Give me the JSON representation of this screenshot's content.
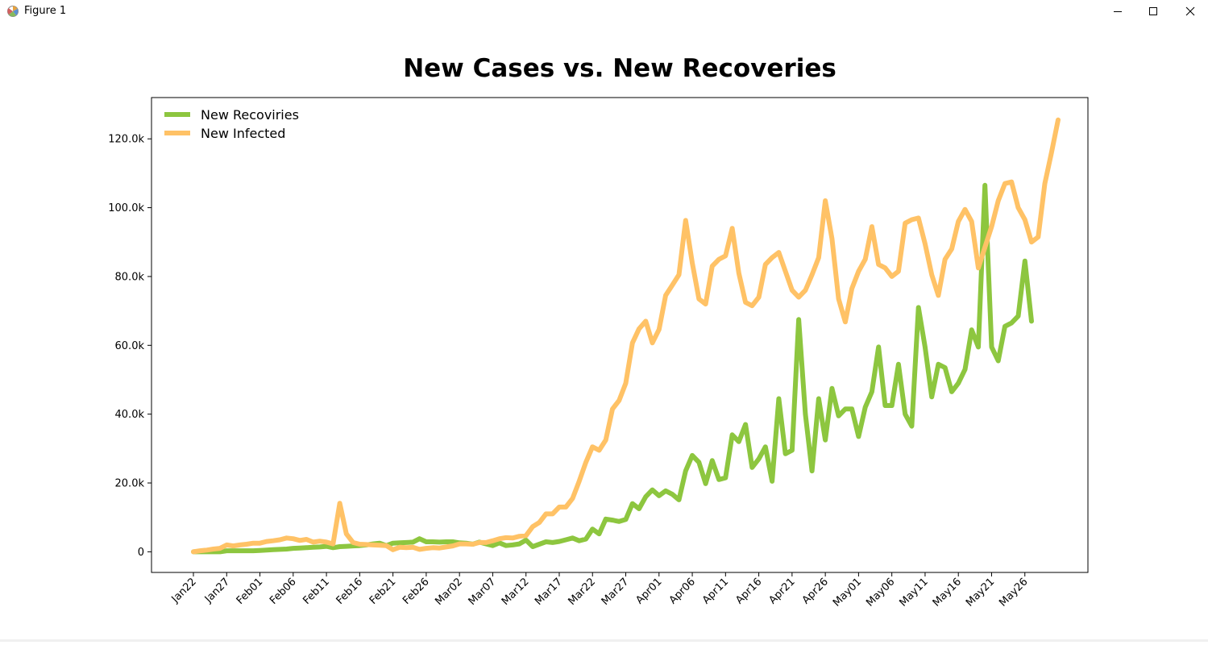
{
  "window": {
    "title": "Figure 1",
    "minimize_icon": "minimize-icon",
    "maximize_icon": "maximize-icon",
    "close_icon": "close-icon"
  },
  "chart_data": {
    "type": "line",
    "title": "New Cases vs. New Recoveries",
    "xlabel": "",
    "ylabel": "",
    "ylim": [
      -6000,
      132000
    ],
    "yticks": [
      0,
      20000,
      40000,
      60000,
      80000,
      100000,
      120000
    ],
    "ytick_labels": [
      "0",
      "20.0k",
      "40.0k",
      "60.0k",
      "80.0k",
      "100.0k",
      "120.0k"
    ],
    "x_start": "Jan22",
    "xticks": [
      "Jan22",
      "Jan27",
      "Feb01",
      "Feb06",
      "Feb11",
      "Feb16",
      "Feb21",
      "Feb26",
      "Mar02",
      "Mar07",
      "Mar12",
      "Mar17",
      "Mar22",
      "Mar27",
      "Apr01",
      "Apr06",
      "Apr11",
      "Apr16",
      "Apr21",
      "Apr26",
      "May01",
      "May06",
      "May11",
      "May16",
      "May21",
      "May26"
    ],
    "grid": false,
    "legend": "top-left",
    "series": [
      {
        "name": "New Recoviries",
        "color": "#8dc63f",
        "values": [
          0,
          0,
          0,
          0,
          0,
          300,
          300,
          300,
          300,
          300,
          400,
          500,
          600,
          700,
          800,
          1000,
          1100,
          1200,
          1300,
          1400,
          1600,
          1200,
          1500,
          1600,
          1700,
          1800,
          2000,
          2300,
          2500,
          1800,
          2500,
          2600,
          2700,
          2800,
          3800,
          2900,
          2900,
          2800,
          2900,
          2900,
          2600,
          2500,
          2200,
          2800,
          2300,
          1800,
          2600,
          1800,
          2000,
          2300,
          3400,
          1500,
          2200,
          2900,
          2700,
          3000,
          3500,
          4000,
          3200,
          3700,
          6600,
          5200,
          9500,
          9200,
          8800,
          9400,
          14000,
          12500,
          16000,
          18000,
          16300,
          17700,
          16700,
          15100,
          23500,
          28000,
          26000,
          19800,
          26500,
          21000,
          21500,
          34000,
          32000,
          37000,
          24500,
          27000,
          30500,
          20500,
          44500,
          28500,
          29500,
          67500,
          40000,
          23500,
          44500,
          32500,
          47500,
          39500,
          41500,
          41500,
          33500,
          42000,
          46500,
          59500,
          42500,
          42500,
          54500,
          40000,
          36500,
          71000,
          59500,
          45000,
          54500,
          53500,
          46500,
          49000,
          53000,
          64500,
          59500,
          106500,
          59500,
          55500,
          65500,
          66500,
          68500,
          84500,
          67000
        ]
      },
      {
        "name": "New Infected",
        "color": "#ffc266",
        "values": [
          0,
          300,
          500,
          800,
          1000,
          2000,
          1700,
          2000,
          2200,
          2500,
          2500,
          3000,
          3200,
          3500,
          4000,
          3800,
          3300,
          3600,
          2800,
          3100,
          2800,
          2300,
          14100,
          5200,
          2700,
          2200,
          2100,
          2000,
          1900,
          1800,
          600,
          1300,
          1200,
          1300,
          700,
          1000,
          1200,
          1100,
          1400,
          1700,
          2300,
          2300,
          2200,
          2700,
          2700,
          3200,
          3800,
          4100,
          4000,
          4500,
          4700,
          7300,
          8500,
          11000,
          11000,
          13000,
          13000,
          15500,
          20500,
          26000,
          30500,
          29500,
          32500,
          41500,
          44000,
          49000,
          60700,
          64800,
          67000,
          60700,
          64600,
          74500,
          77500,
          80500,
          96300,
          84000,
          73500,
          72000,
          83000,
          85000,
          86000,
          94000,
          81000,
          72500,
          71500,
          74000,
          83500,
          85500,
          87000,
          81500,
          76000,
          74000,
          76000,
          80500,
          85500,
          102000,
          91000,
          73500,
          66800,
          76500,
          81500,
          85000,
          94500,
          83500,
          82500,
          80000,
          81500,
          95500,
          96500,
          97000,
          89500,
          80500,
          74500,
          85000,
          88000,
          96000,
          99500,
          96000,
          82500,
          88500,
          94500,
          102000,
          107000,
          107500,
          100000,
          96500,
          90000,
          91500,
          107000,
          116000,
          125500
        ]
      }
    ]
  }
}
